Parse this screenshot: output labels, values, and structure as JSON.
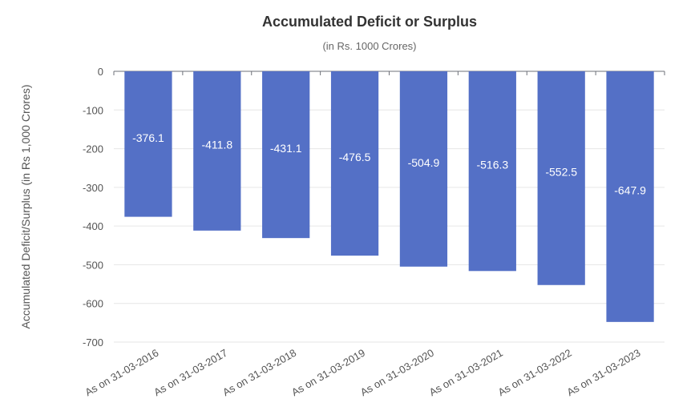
{
  "chart_data": {
    "type": "bar",
    "title": "Accumulated Deficit or Surplus",
    "subtitle": "(in Rs. 1000 Crores)",
    "xlabel": "",
    "ylabel": "Accumulated Deficit/Surplus (in Rs 1,000 Crores)",
    "categories": [
      "As on 31-03-2016",
      "As on 31-03-2017",
      "As on 31-03-2018",
      "As on 31-03-2019",
      "As on 31-03-2020",
      "As on 31-03-2021",
      "As on 31-03-2022",
      "As on 31-03-2023"
    ],
    "values": [
      -376.1,
      -411.8,
      -431.1,
      -476.5,
      -504.9,
      -516.3,
      -552.5,
      -647.9
    ],
    "ylim": [
      -700,
      0
    ],
    "yticks": [
      0,
      -100,
      -200,
      -300,
      -400,
      -500,
      -600,
      -700
    ],
    "grid": true,
    "bar_color": "#5470c6"
  }
}
